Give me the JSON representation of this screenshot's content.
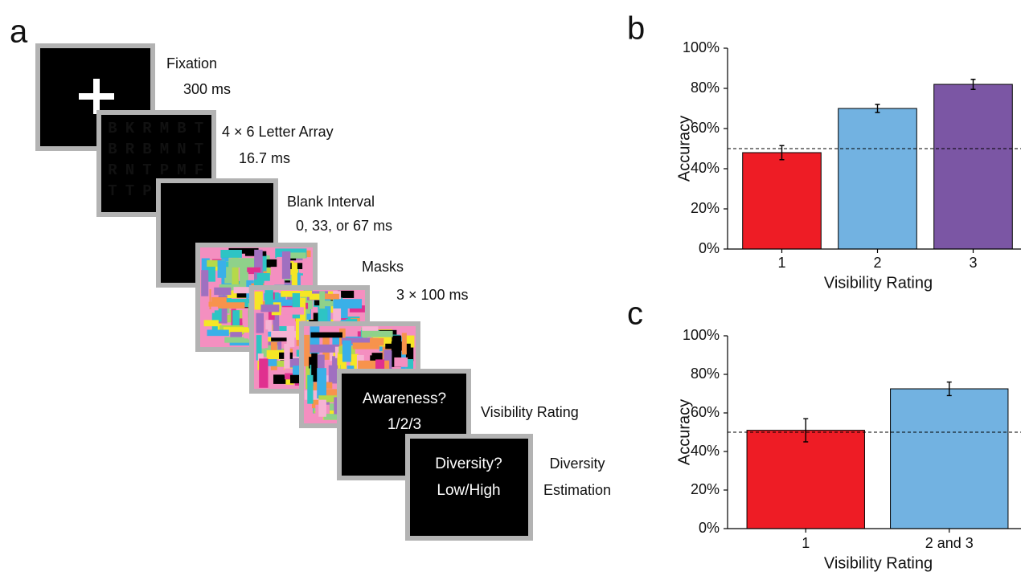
{
  "panel_labels": [
    "a",
    "b",
    "c"
  ],
  "procedure": {
    "steps": [
      {
        "label": "Fixation",
        "detail": "300 ms"
      },
      {
        "label": "4 × 6 Letter Array",
        "detail": "16.7 ms"
      },
      {
        "label": "Blank Interval",
        "detail": "0, 33, or 67 ms"
      },
      {
        "label": "Masks",
        "detail": "3 × 100 ms"
      },
      {
        "label": "Visibility Rating"
      },
      {
        "label": "Diversity",
        "detail": "Estimation"
      }
    ],
    "letter_rows": [
      [
        "B",
        "K",
        "R",
        "M",
        "B",
        "T"
      ],
      [
        "B",
        "R",
        "B",
        "M",
        "N",
        "T"
      ],
      [
        "R",
        "N",
        "T",
        "P",
        "M",
        "F"
      ],
      [
        "T",
        "T",
        "P"
      ]
    ],
    "awareness_screen": [
      "Awareness?",
      "1/2/3"
    ],
    "diversity_screen": [
      "Diversity?",
      "Low/High"
    ]
  },
  "chart_data": [
    {
      "type": "bar",
      "y_label": "Accuracy",
      "x_label": "Visibility Rating",
      "categories": [
        "1",
        "2",
        "3"
      ],
      "values": [
        48,
        70,
        82
      ],
      "errors": [
        3.5,
        2,
        2.5
      ],
      "colors": [
        "#ee1c25",
        "#72b2e1",
        "#7b56a4"
      ],
      "chance_level": 50,
      "ylim": [
        0,
        100
      ],
      "yticks": [
        {
          "value": 0,
          "label": "0%"
        },
        {
          "value": 20,
          "label": "20%"
        },
        {
          "value": 40,
          "label": "40%"
        },
        {
          "value": 60,
          "label": "60%"
        },
        {
          "value": 80,
          "label": "80%"
        },
        {
          "value": 100,
          "label": "100%"
        }
      ]
    },
    {
      "type": "bar",
      "y_label": "Accuracy",
      "x_label": "Visibility Rating",
      "categories": [
        "1",
        "2 and 3"
      ],
      "values": [
        51,
        72.5
      ],
      "errors": [
        6,
        3.5
      ],
      "colors": [
        "#ee1c25",
        "#72b2e1"
      ],
      "chance_level": 50,
      "ylim": [
        0,
        100
      ],
      "yticks": [
        {
          "value": 0,
          "label": "0%"
        },
        {
          "value": 20,
          "label": "20%"
        },
        {
          "value": 40,
          "label": "40%"
        },
        {
          "value": 60,
          "label": "60%"
        },
        {
          "value": 80,
          "label": "80%"
        },
        {
          "value": 100,
          "label": "100%"
        }
      ]
    }
  ]
}
